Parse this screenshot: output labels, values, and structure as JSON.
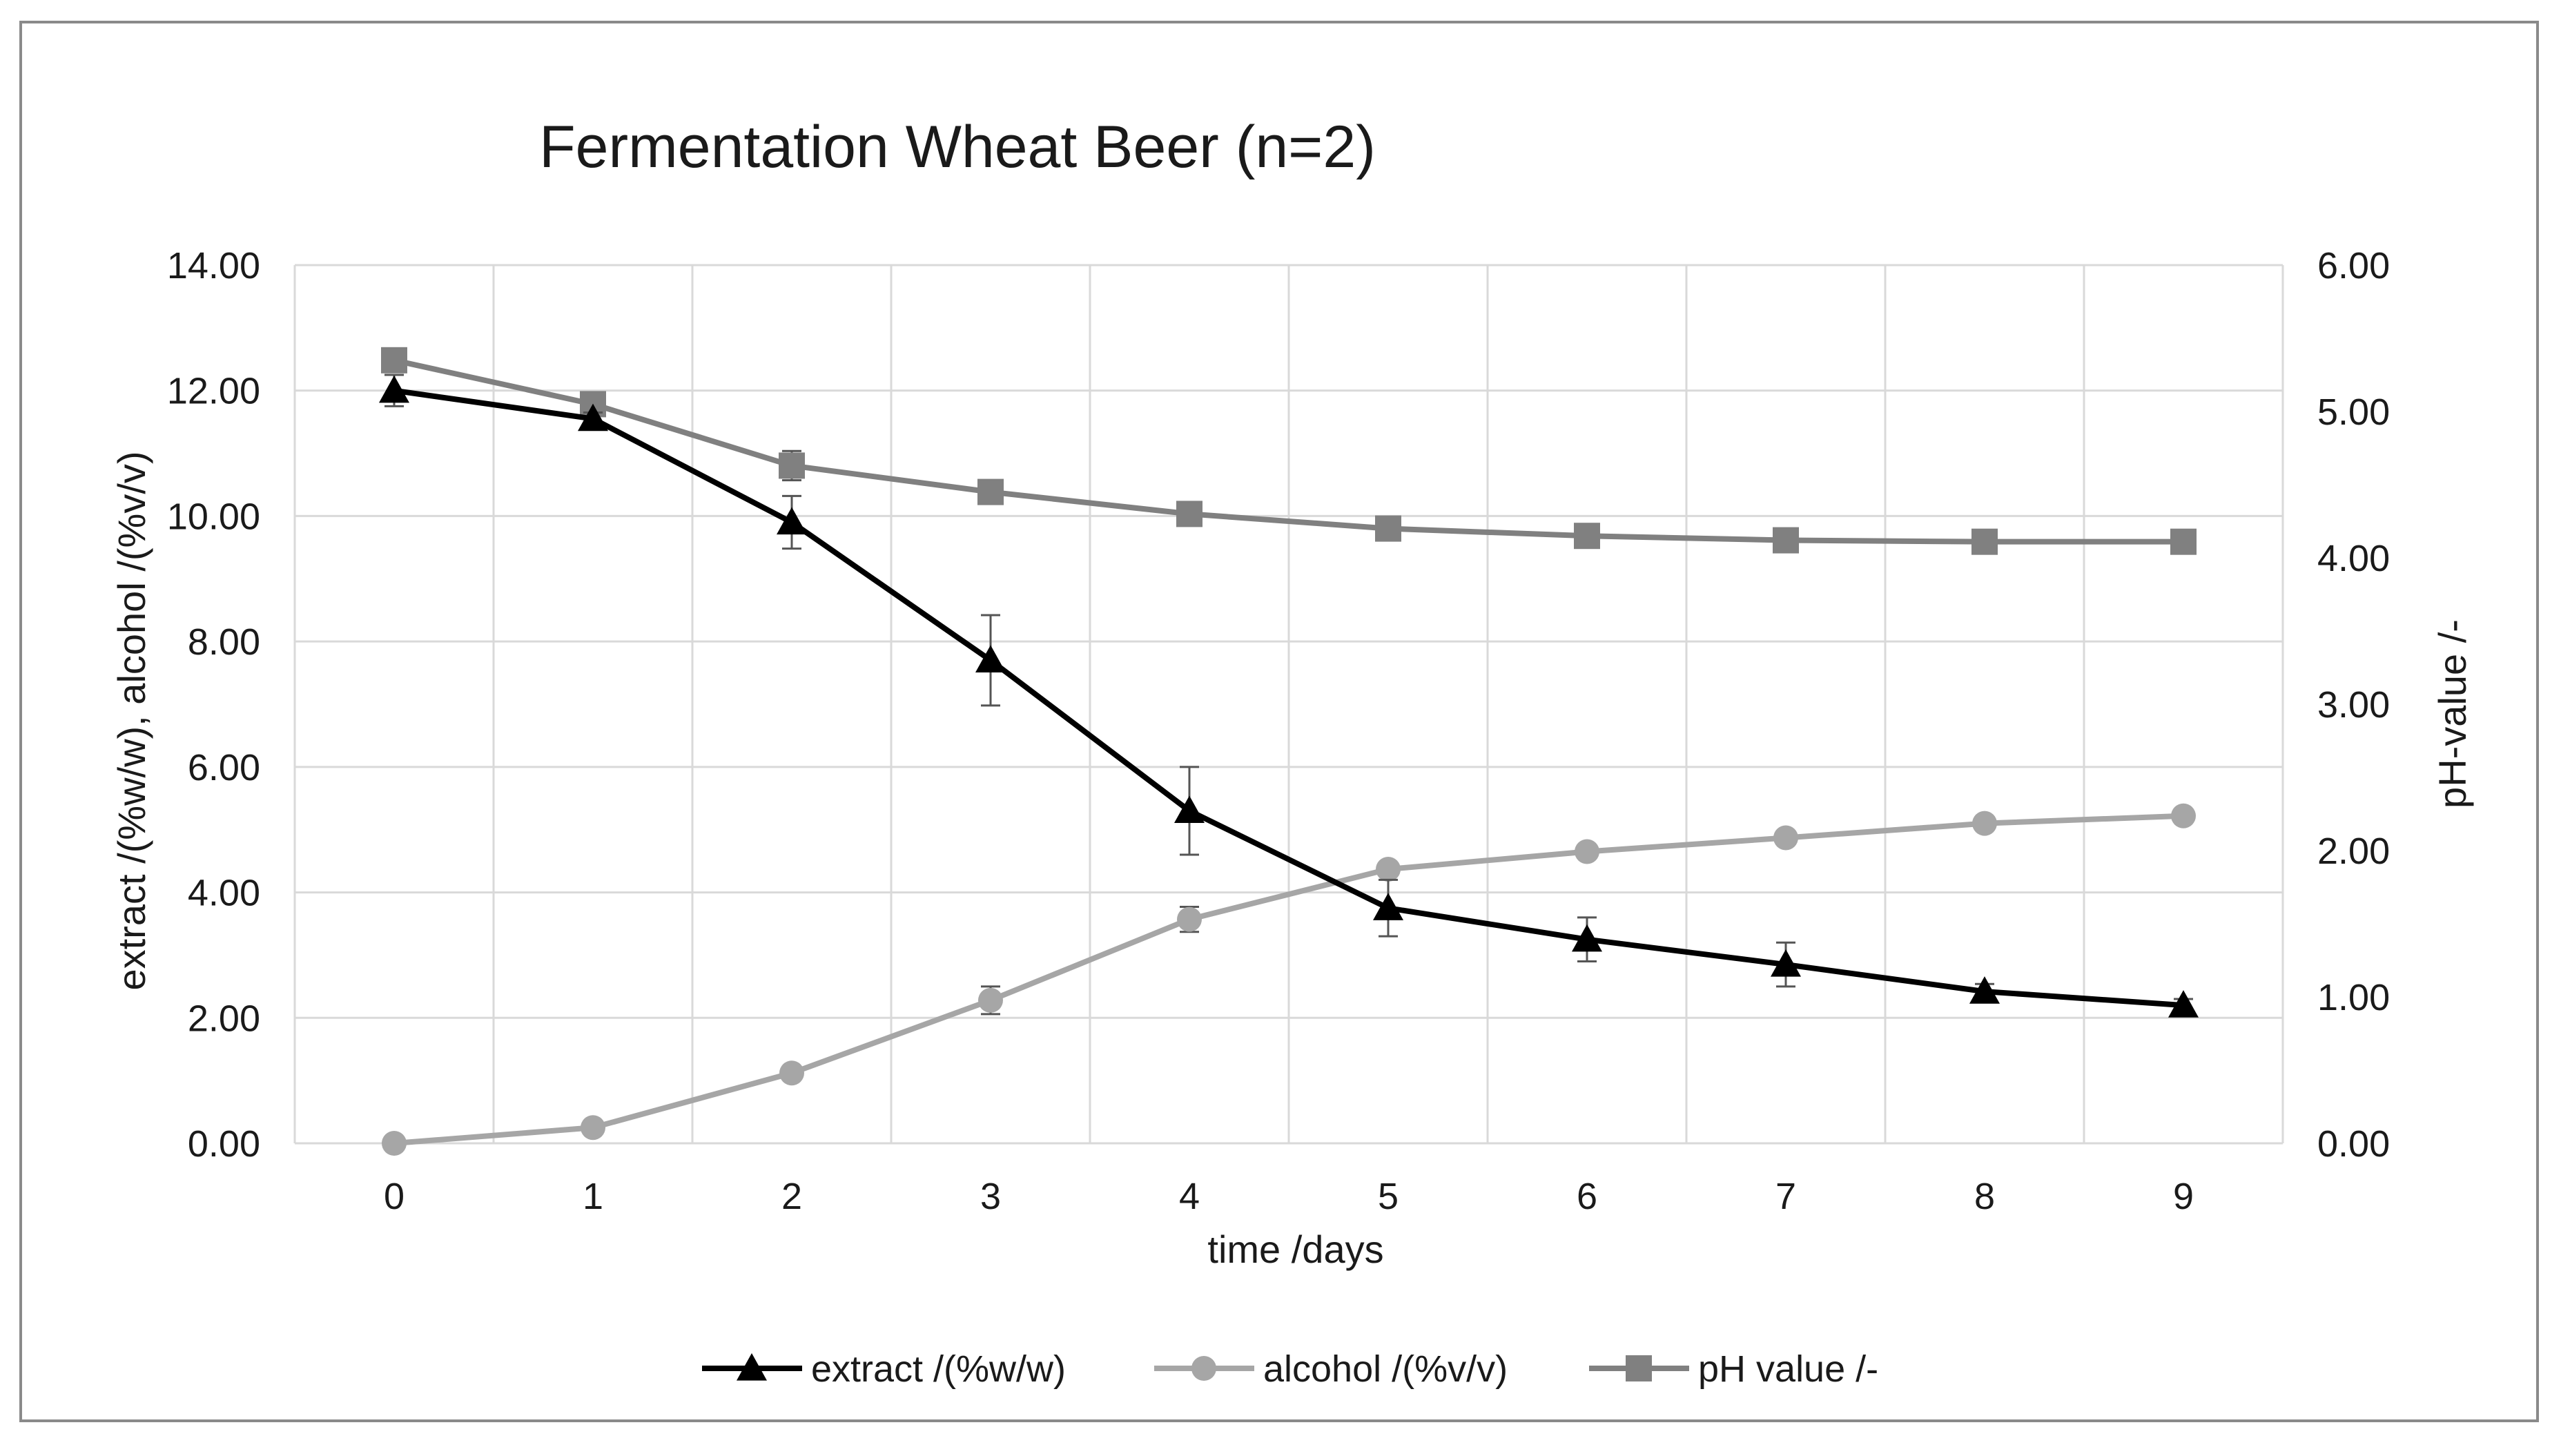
{
  "chart_data": {
    "type": "line",
    "title": "Fermentation Wheat Beer (n=2)",
    "xlabel": "time /days",
    "ylabel": "extract /(%w/w), alcohol /(%v/v)",
    "y2label": "pH-value /-",
    "x": [
      0,
      1,
      2,
      3,
      4,
      5,
      6,
      7,
      8,
      9
    ],
    "x_tick_labels": [
      "0",
      "1",
      "2",
      "3",
      "4",
      "5",
      "6",
      "7",
      "8",
      "9"
    ],
    "ylim": [
      0,
      14
    ],
    "y_ticks": [
      0,
      2,
      4,
      6,
      8,
      10,
      12,
      14
    ],
    "y_tick_labels": [
      "0.00",
      "2.00",
      "4.00",
      "6.00",
      "8.00",
      "10.00",
      "12.00",
      "14.00"
    ],
    "y2lim": [
      0,
      6
    ],
    "y2_ticks": [
      0,
      1,
      2,
      3,
      4,
      5,
      6
    ],
    "y2_tick_labels": [
      "0.00",
      "1.00",
      "2.00",
      "3.00",
      "4.00",
      "5.00",
      "6.00"
    ],
    "grid": true,
    "legend_position": "bottom",
    "series": [
      {
        "name": "extract /(%w/w)",
        "axis": "left",
        "marker": "triangle",
        "color": "#000000",
        "values": [
          12.0,
          11.55,
          9.9,
          7.7,
          5.3,
          3.75,
          3.25,
          2.85,
          2.42,
          2.2
        ],
        "error": [
          0.25,
          0.1,
          0.42,
          0.72,
          0.7,
          0.45,
          0.35,
          0.35,
          0.12,
          0.1
        ]
      },
      {
        "name": "alcohol /(%v/v)",
        "axis": "left",
        "marker": "circle",
        "color": "#a6a6a6",
        "values": [
          0.0,
          0.25,
          1.12,
          2.28,
          3.57,
          4.37,
          4.65,
          4.87,
          5.1,
          5.22
        ],
        "error": [
          0,
          0,
          0,
          0.22,
          0.2,
          0,
          0,
          0,
          0,
          0
        ]
      },
      {
        "name": "pH value /-",
        "axis": "right",
        "marker": "square",
        "color": "#808080",
        "values": [
          5.35,
          5.05,
          4.63,
          4.45,
          4.3,
          4.2,
          4.15,
          4.12,
          4.11,
          4.11
        ],
        "error": [
          0,
          0,
          0.1,
          0,
          0,
          0,
          0,
          0,
          0,
          0
        ]
      }
    ]
  }
}
